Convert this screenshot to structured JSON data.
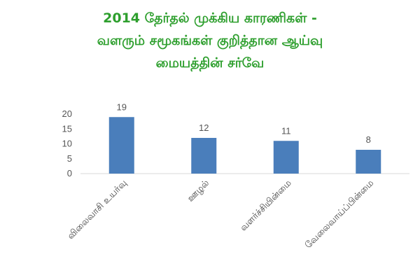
{
  "chart_data": {
    "type": "bar",
    "title_lines": [
      "2014 தேர்தல் முக்கிய காரணிகள் -",
      "வளரும் சமூகங்கள் குறித்தான ஆய்வு",
      "மையத்தின் சர்வே"
    ],
    "categories": [
      "விலைவாசி உயர்வு",
      "ஊழல்",
      "வளர்ச்சியின்மை",
      "வேலைவாய்ப்பின்மை"
    ],
    "values": [
      19,
      12,
      11,
      8
    ],
    "data_labels": [
      "19",
      "12",
      "11",
      "8"
    ],
    "y_ticks": [
      "0",
      "5",
      "10",
      "15",
      "20"
    ],
    "ylim": [
      0,
      20
    ],
    "bar_color": "#4a7ebb",
    "title_color": "#2e9f2e",
    "grid": false,
    "legend": "none"
  }
}
